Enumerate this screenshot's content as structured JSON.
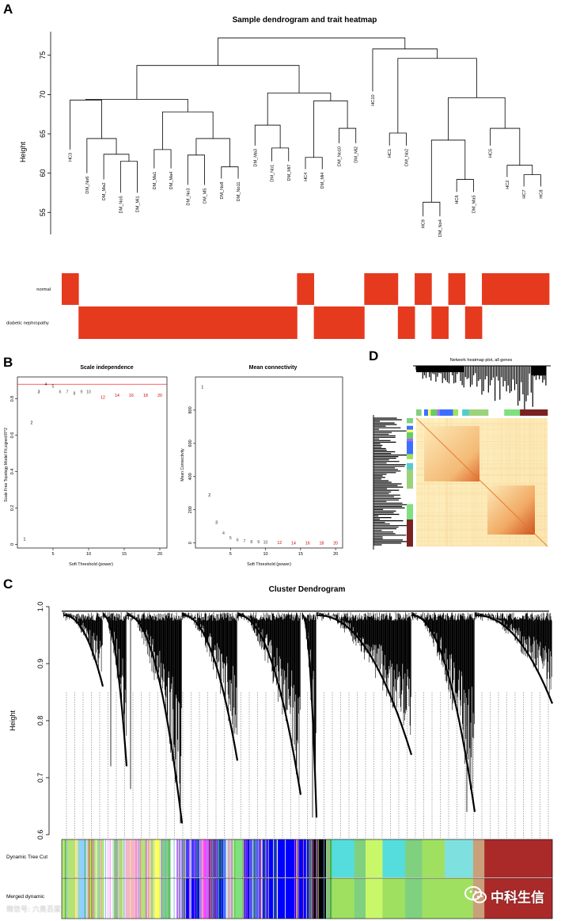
{
  "panels": {
    "a": "A",
    "b": "B",
    "c": "C",
    "d": "D"
  },
  "colors": {
    "accent_red": "#e63a1e",
    "threshold_line": "#ff0000",
    "heat_bg": "#fdf3c6",
    "heat_hot": "#d9541a"
  },
  "chart_data": [
    {
      "id": "A_dendrogram",
      "type": "dendrogram",
      "title": "Sample dendrogram and trait heatmap",
      "ylabel": "Height",
      "yticks": [
        55,
        60,
        65,
        70,
        75
      ],
      "ylim": [
        52,
        78
      ],
      "leaves": [
        "HC3",
        "DM_No6",
        "DM_Ma2",
        "DM_No5",
        "DM_Mi1",
        "DM_Ma1",
        "DM_Ma4",
        "DM_No3",
        "DM_M5",
        "DM_No8",
        "DM_No11",
        "DM_Ma3",
        "DM_No1",
        "DM_Mi7",
        "HC4",
        "DM_Mi4",
        "DM_No10",
        "DM_Mi2",
        "HC10",
        "HC1",
        "DM_No2",
        "HC9",
        "DM_No4",
        "HC6",
        "DM_Ma5",
        "HC5",
        "HC2",
        "HC7",
        "HC8"
      ]
    },
    {
      "id": "A_traits",
      "type": "heatmap",
      "rows": [
        {
          "name": "normal",
          "values": [
            1,
            0,
            0,
            0,
            0,
            0,
            0,
            0,
            0,
            0,
            0,
            0,
            0,
            0,
            1,
            0,
            0,
            0,
            1,
            1,
            0,
            1,
            0,
            1,
            0,
            1,
            1,
            1,
            1
          ]
        },
        {
          "name": "diabetic nephropathy",
          "values": [
            0,
            1,
            1,
            1,
            1,
            1,
            1,
            1,
            1,
            1,
            1,
            1,
            1,
            1,
            0,
            1,
            1,
            1,
            0,
            0,
            1,
            0,
            1,
            0,
            1,
            0,
            0,
            0,
            0
          ]
        }
      ]
    },
    {
      "id": "B_scale",
      "type": "scatter",
      "title": "Scale independence",
      "xlabel": "Soft Threshold (power)",
      "ylabel": "Scale Free Topology Model Fit,signed R^2",
      "xticks": [
        5,
        10,
        15,
        20
      ],
      "yticks": [
        0.0,
        0.2,
        0.4,
        0.6,
        0.8
      ],
      "xlim": [
        0,
        21
      ],
      "ylim": [
        -0.02,
        0.92
      ],
      "threshold": 0.88,
      "x": [
        1,
        2,
        3,
        4,
        5,
        6,
        7,
        8,
        9,
        10,
        12,
        14,
        16,
        18,
        20
      ],
      "y": [
        0.03,
        0.67,
        0.84,
        0.88,
        0.87,
        0.84,
        0.84,
        0.83,
        0.84,
        0.84,
        0.81,
        0.82,
        0.82,
        0.82,
        0.82
      ]
    },
    {
      "id": "B_conn",
      "type": "scatter",
      "title": "Mean connectivity",
      "xlabel": "Soft Threshold (power)",
      "ylabel": "Mean Connectivity",
      "xticks": [
        5,
        10,
        15,
        20
      ],
      "yticks": [
        0,
        200,
        400,
        600,
        800
      ],
      "xlim": [
        0,
        21
      ],
      "ylim": [
        -30,
        1000
      ],
      "x": [
        1,
        2,
        3,
        4,
        5,
        6,
        7,
        8,
        9,
        10,
        12,
        14,
        16,
        18,
        20
      ],
      "y": [
        940,
        290,
        125,
        60,
        33,
        20,
        13,
        9,
        7,
        5,
        3,
        2,
        2,
        1,
        1
      ]
    },
    {
      "id": "C_cluster",
      "type": "dendrogram",
      "title": "Cluster Dendrogram",
      "ylabel": "Height",
      "yticks": [
        0.6,
        0.7,
        0.8,
        0.9,
        1.0
      ],
      "ylim": [
        0.6,
        1.0
      ],
      "rows": [
        "Dynamic Tree Cut",
        "Merged dynamic"
      ]
    },
    {
      "id": "D_heatmap",
      "type": "heatmap",
      "title": "Network heatmap plot, all genes"
    }
  ],
  "watermark": {
    "left": "微信号: 六奥百度",
    "right": "中科生信"
  }
}
